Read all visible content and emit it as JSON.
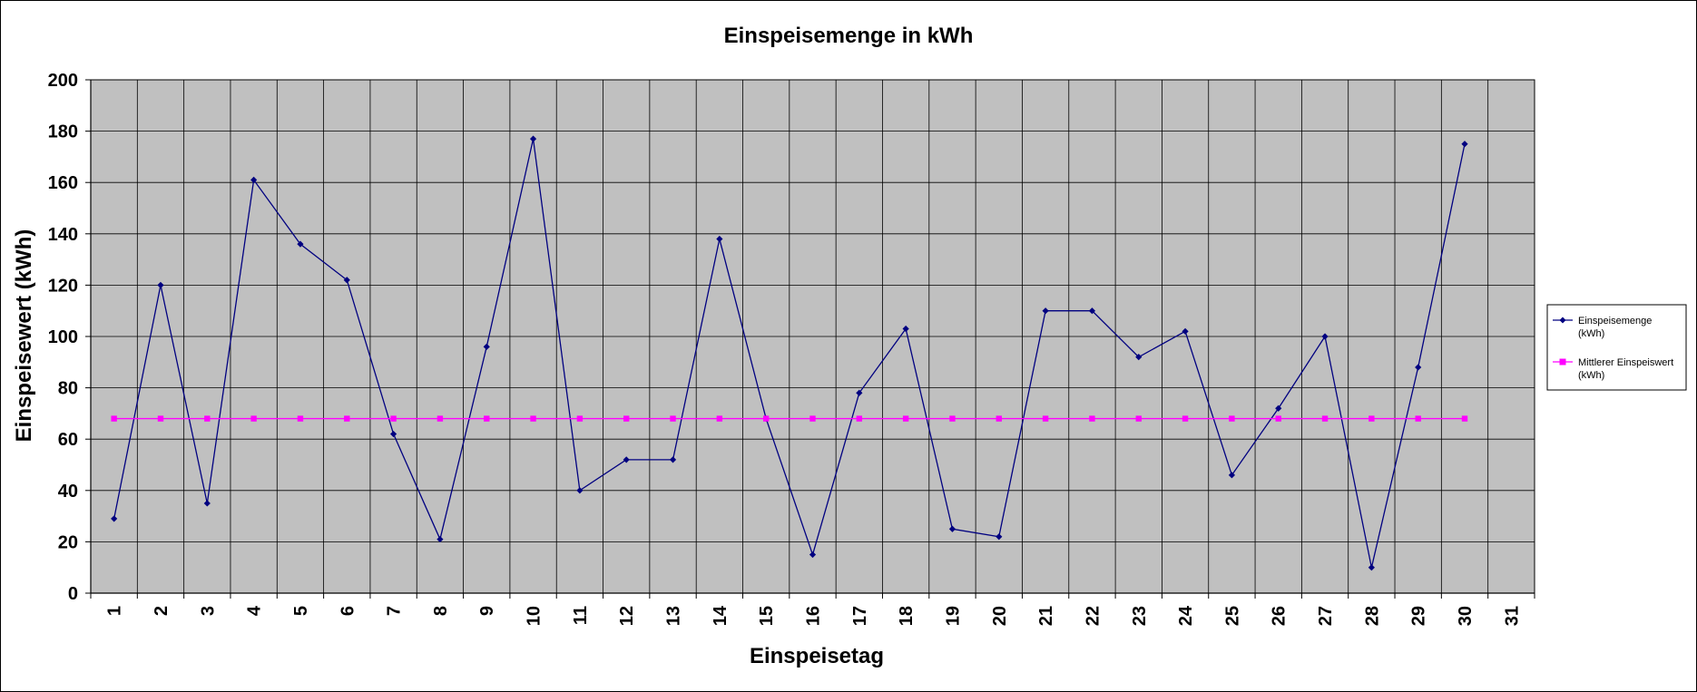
{
  "chart_data": {
    "type": "line",
    "title": "Einspeisemenge in kWh",
    "xlabel": "Einspeisetag",
    "ylabel": "Einspeisewert  (kWh)",
    "categories": [
      "1",
      "2",
      "3",
      "4",
      "5",
      "6",
      "7",
      "8",
      "9",
      "10",
      "11",
      "12",
      "13",
      "14",
      "15",
      "16",
      "17",
      "18",
      "19",
      "20",
      "21",
      "22",
      "23",
      "24",
      "25",
      "26",
      "27",
      "28",
      "29",
      "30",
      "31"
    ],
    "ylim": [
      0,
      200
    ],
    "yticks": [
      0,
      20,
      40,
      60,
      80,
      100,
      120,
      140,
      160,
      180,
      200
    ],
    "grid": true,
    "legend_position": "right",
    "plot_background": "#c0c0c0",
    "series": [
      {
        "name": "Einspeisemenge (kWh)",
        "legend_lines": [
          "Einspeisemenge",
          "(kWh)"
        ],
        "color": "#000080",
        "marker": "diamond",
        "values": [
          29,
          120,
          35,
          161,
          136,
          122,
          62,
          21,
          96,
          177,
          40,
          52,
          52,
          138,
          68,
          15,
          78,
          103,
          25,
          22,
          110,
          110,
          92,
          102,
          46,
          72,
          100,
          10,
          88,
          175,
          null
        ]
      },
      {
        "name": "Mittlerer Einspeiswert (kWh)",
        "legend_lines": [
          "Mittlerer Einspeiswert",
          "(kWh)"
        ],
        "color": "#ff00ff",
        "marker": "square",
        "values": [
          68,
          68,
          68,
          68,
          68,
          68,
          68,
          68,
          68,
          68,
          68,
          68,
          68,
          68,
          68,
          68,
          68,
          68,
          68,
          68,
          68,
          68,
          68,
          68,
          68,
          68,
          68,
          68,
          68,
          68,
          null
        ]
      }
    ]
  }
}
